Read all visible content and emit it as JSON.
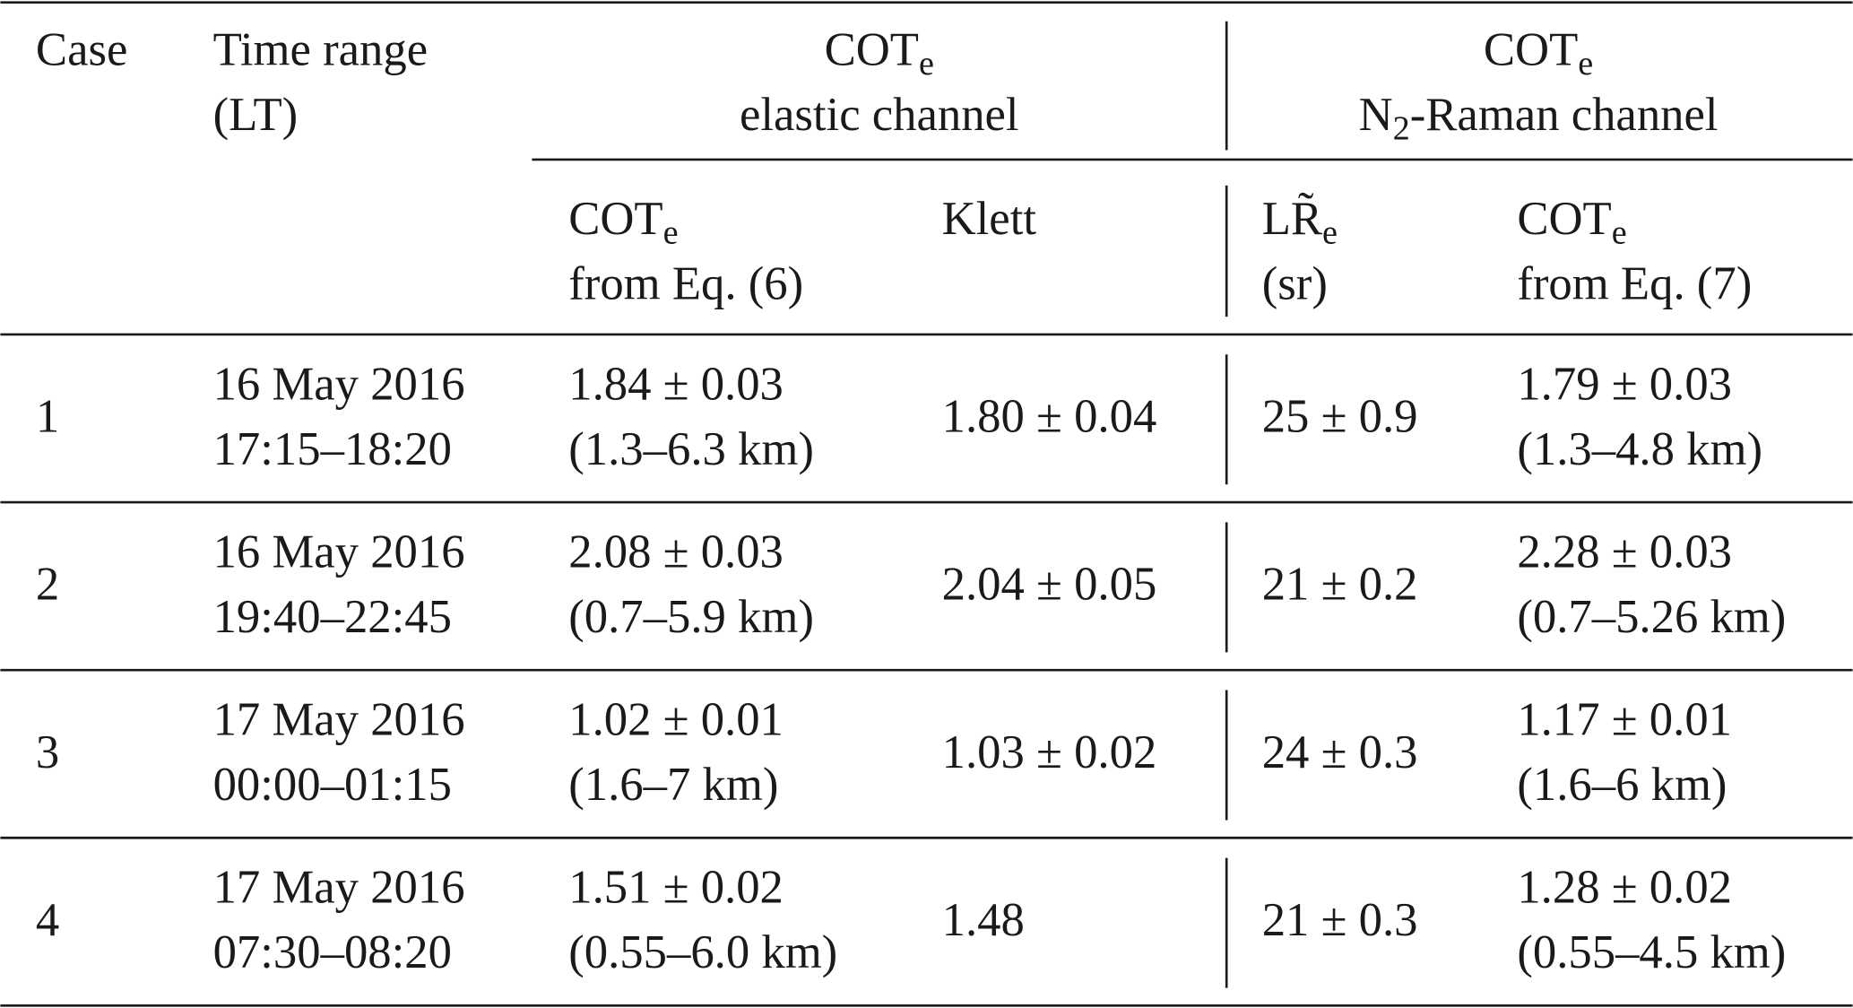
{
  "header": {
    "case": "Case",
    "time_range": [
      "Time range",
      "(LT)"
    ],
    "elastic": {
      "title": {
        "main": "COT",
        "sub": "e"
      },
      "subtitle": "elastic channel"
    },
    "raman": {
      "title": {
        "main": "COT",
        "sub": "e"
      },
      "subtitle": {
        "pre": "N",
        "sub": "2",
        "post": "-Raman channel"
      }
    },
    "cot_eq6": {
      "main": "COT",
      "sub": "e",
      "line2": "from Eq. (6)"
    },
    "klett": "Klett",
    "lr": {
      "main": "LR̃",
      "sub": "e",
      "line2": "(sr)"
    },
    "cot_eq7": {
      "main": "COT",
      "sub": "e",
      "line2": "from Eq. (7)"
    }
  },
  "table": {
    "rows": [
      [
        "1",
        "16 May 2016",
        "17:15–18:20",
        "1.84 ± 0.03",
        "(1.3–6.3 km)",
        "1.80 ± 0.04",
        "25 ± 0.9",
        "1.79 ± 0.03",
        "(1.3–4.8 km)"
      ],
      [
        "2",
        "16 May 2016",
        "19:40–22:45",
        "2.08 ± 0.03",
        "(0.7–5.9 km)",
        "2.04 ± 0.05",
        "21 ± 0.2",
        "2.28 ± 0.03",
        "(0.7–5.26 km)"
      ],
      [
        "3",
        "17 May 2016",
        "00:00–01:15",
        "1.02 ± 0.01",
        "(1.6–7 km)",
        "1.03 ± 0.02",
        "24 ± 0.3",
        "1.17 ± 0.01",
        "(1.6–6 km)"
      ],
      [
        "4",
        "17 May 2016",
        "07:30–08:20",
        "1.51 ± 0.02",
        "(0.55–6.0 km)",
        "1.48",
        "21 ± 0.3",
        "1.28 ± 0.02",
        "(0.55–4.5 km)"
      ]
    ]
  }
}
